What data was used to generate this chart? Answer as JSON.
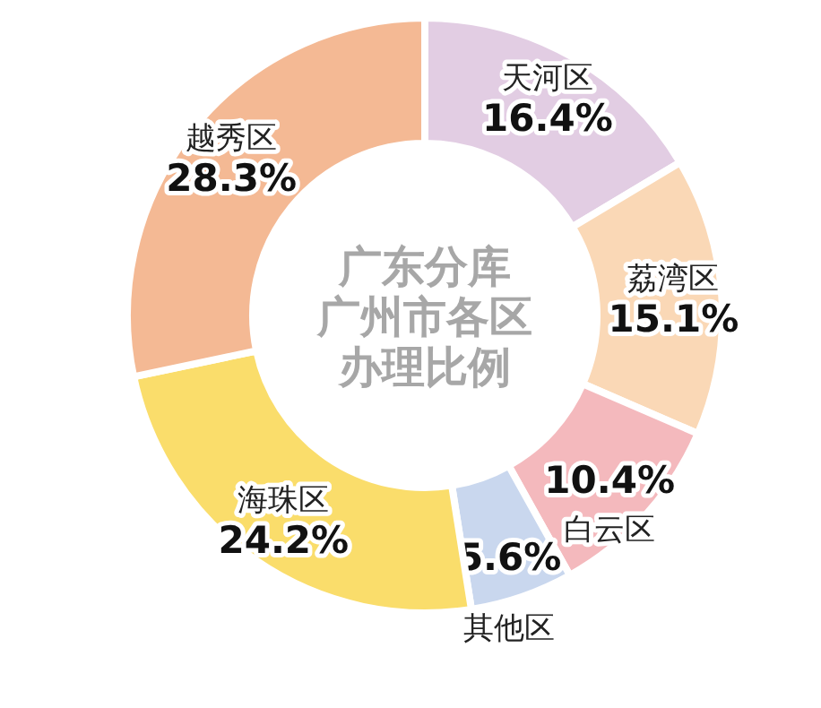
{
  "chart_data": {
    "type": "donut",
    "title": "广东分库广州市各区办理比例",
    "categories": [
      "天河区",
      "荔湾区",
      "白云区",
      "其他区",
      "海珠区",
      "越秀区"
    ],
    "values": [
      16.4,
      15.1,
      10.4,
      5.6,
      24.2,
      28.3
    ],
    "colors": [
      "#e2cde3",
      "#fad8b6",
      "#f4b9bd",
      "#c9d7ee",
      "#fadd6b",
      "#f4b994"
    ],
    "value_labels": [
      "16.4%",
      "15.1%",
      "10.4%",
      "5.6%",
      "24.2%",
      "28.3%"
    ]
  }
}
